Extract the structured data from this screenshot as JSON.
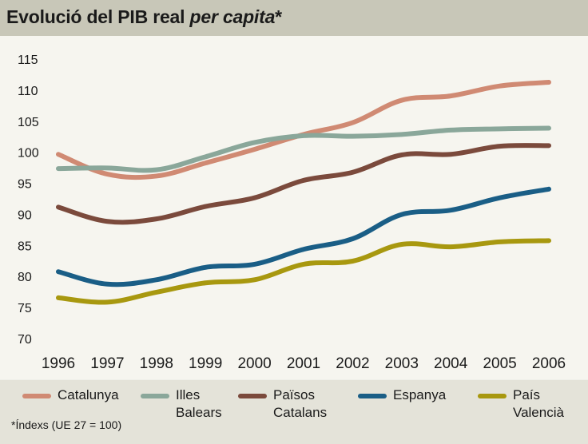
{
  "title": {
    "main": "Evolució del PIB real ",
    "italic": "per capita",
    "suffix": "*"
  },
  "footnote": "*Índexs (UE 27 = 100)",
  "legend": [
    {
      "label": "Catalunya",
      "color": "#d08a73"
    },
    {
      "label": "Illes\nBalears",
      "color": "#8aa79a"
    },
    {
      "label": "Països\nCatalans",
      "color": "#7b4a3c"
    },
    {
      "label": "Espanya",
      "color": "#1a5e86"
    },
    {
      "label": "País\nValencià",
      "color": "#a8980f"
    }
  ],
  "chart_data": {
    "type": "line",
    "title": "Evolució del PIB real per capita*",
    "x": [
      "1996",
      "1997",
      "1998",
      "1999",
      "2000",
      "2001",
      "2002",
      "2003",
      "2004",
      "2005",
      "2006"
    ],
    "ylim": [
      70,
      115
    ],
    "yticks": [
      70,
      75,
      80,
      85,
      90,
      95,
      100,
      105,
      110,
      115
    ],
    "grid": false,
    "legend_position": "bottom",
    "series": [
      {
        "name": "Catalunya",
        "color": "#d08a73",
        "values": [
          99.8,
          96.6,
          96.3,
          98.4,
          100.6,
          103.0,
          104.9,
          108.5,
          109.2,
          110.8,
          111.4
        ]
      },
      {
        "name": "Illes Balears",
        "color": "#8aa79a",
        "values": [
          97.5,
          97.6,
          97.3,
          99.4,
          101.7,
          102.8,
          102.7,
          103.0,
          103.7,
          103.9,
          104.0
        ]
      },
      {
        "name": "Països Catalans",
        "color": "#7b4a3c",
        "values": [
          91.3,
          89.0,
          89.4,
          91.4,
          92.8,
          95.6,
          96.9,
          99.7,
          99.8,
          101.1,
          101.2
        ]
      },
      {
        "name": "Espanya",
        "color": "#1a5e86",
        "values": [
          80.9,
          78.9,
          79.6,
          81.6,
          82.1,
          84.5,
          86.2,
          90.1,
          90.8,
          92.8,
          94.2
        ]
      },
      {
        "name": "País Valencià",
        "color": "#a8980f",
        "values": [
          76.7,
          76.0,
          77.6,
          79.1,
          79.6,
          82.1,
          82.6,
          85.3,
          84.9,
          85.7,
          85.9
        ]
      }
    ]
  }
}
